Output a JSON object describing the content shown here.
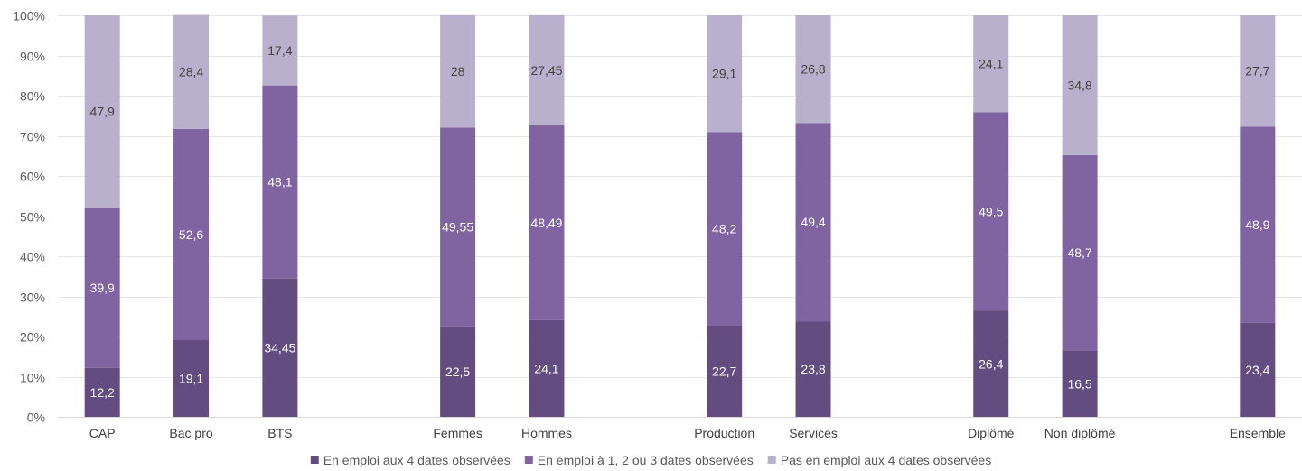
{
  "chart_data": {
    "type": "bar",
    "stacked": true,
    "percent_stacked": true,
    "categories": [
      "CAP",
      "Bac pro",
      "BTS",
      "",
      "Femmes",
      "Hommes",
      "",
      "Production",
      "Services",
      "",
      "Diplômé",
      "Non diplômé",
      "",
      "Ensemble"
    ],
    "series": [
      {
        "name": "En emploi aux 4 dates observées",
        "color": "#634d80",
        "label_color": "#ffffff",
        "values": [
          12.2,
          19.1,
          34.45,
          null,
          22.5,
          24.1,
          null,
          22.7,
          23.8,
          null,
          26.4,
          16.5,
          null,
          23.4
        ],
        "labels": [
          "12,2",
          "19,1",
          "34,45",
          "",
          "22,5",
          "24,1",
          "",
          "22,7",
          "23,8",
          "",
          "26,4",
          "16,5",
          "",
          "23,4"
        ]
      },
      {
        "name": "En emploi à 1, 2 ou 3 dates observées",
        "color": "#8064a2",
        "label_color": "#ffffff",
        "values": [
          39.9,
          52.6,
          48.1,
          null,
          49.55,
          48.49,
          null,
          48.2,
          49.4,
          null,
          49.5,
          48.7,
          null,
          48.9
        ],
        "labels": [
          "39,9",
          "52,6",
          "48,1",
          "",
          "49,55",
          "48,49",
          "",
          "48,2",
          "49,4",
          "",
          "49,5",
          "48,7",
          "",
          "48,9"
        ]
      },
      {
        "name": "Pas en emploi aux 4 dates observées",
        "color": "#b8b0cc",
        "label_color": "#404040",
        "values": [
          47.9,
          28.4,
          17.4,
          null,
          28,
          27.45,
          null,
          29.1,
          26.8,
          null,
          24.1,
          34.8,
          null,
          27.7
        ],
        "labels": [
          "47,9",
          "28,4",
          "17,4",
          "",
          "28",
          "27,45",
          "",
          "29,1",
          "26,8",
          "",
          "24,1",
          "34,8",
          "",
          "27,7"
        ]
      }
    ],
    "yticks": [
      "0%",
      "10%",
      "20%",
      "30%",
      "40%",
      "50%",
      "60%",
      "70%",
      "80%",
      "90%",
      "100%"
    ],
    "ylim": [
      0,
      100
    ],
    "grid": true,
    "legend_position": "bottom",
    "title": "",
    "xlabel": "",
    "ylabel": ""
  }
}
